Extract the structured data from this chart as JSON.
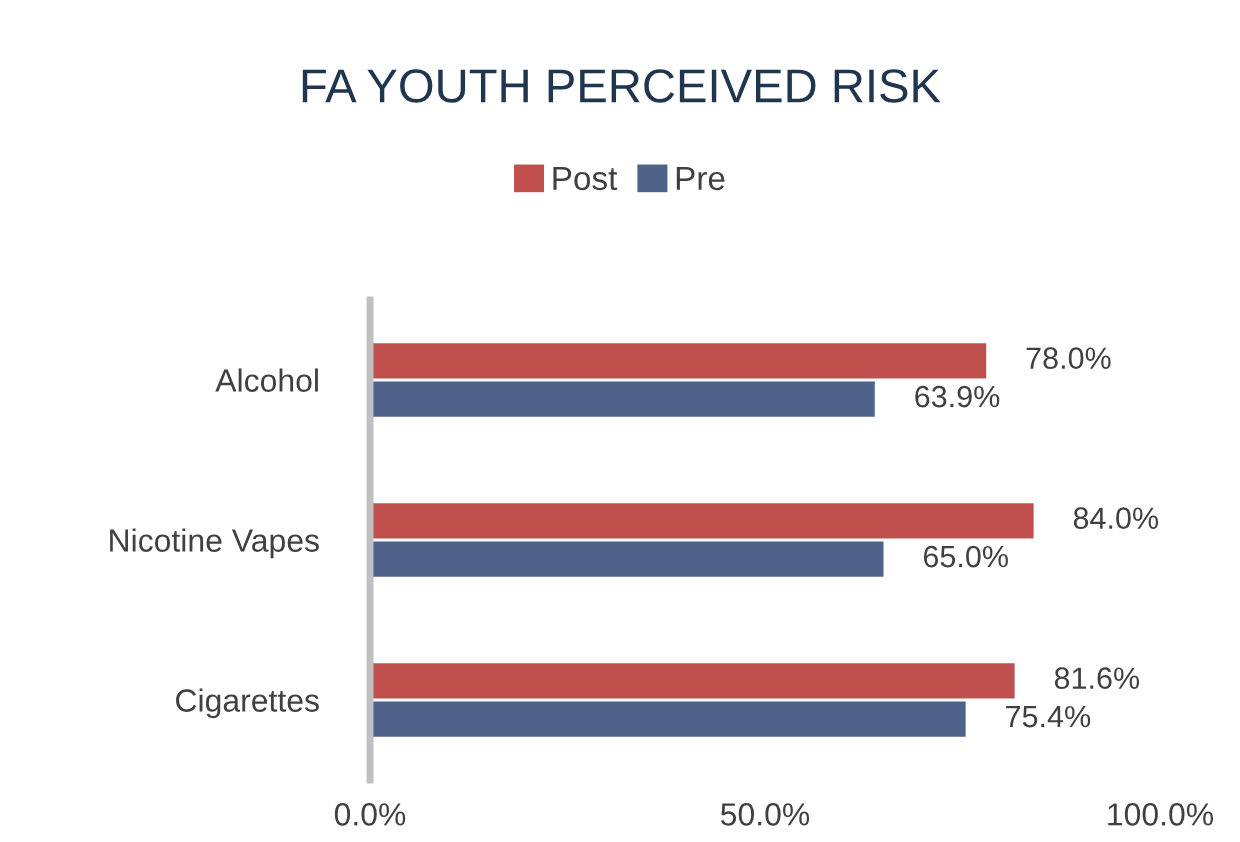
{
  "chart_data": {
    "type": "bar",
    "orientation": "horizontal",
    "title": "FA YOUTH PERCEIVED RISK",
    "categories": [
      "Alcohol",
      "Nicotine Vapes",
      "Cigarettes"
    ],
    "series": [
      {
        "name": "Post",
        "color": "#c0504d",
        "values": [
          78.0,
          84.0,
          81.6
        ],
        "value_labels": [
          "78.0%",
          "84.0%",
          "81.6%"
        ]
      },
      {
        "name": "Pre",
        "color": "#4f6289",
        "values": [
          63.9,
          65.0,
          75.4
        ],
        "value_labels": [
          "63.9%",
          "65.0%",
          "75.4%"
        ]
      }
    ],
    "xlim": [
      0,
      100
    ],
    "xticks": [
      {
        "value": 0,
        "label": "0.0%"
      },
      {
        "value": 50,
        "label": "50.0%"
      },
      {
        "value": 100,
        "label": "100.0%"
      }
    ],
    "grid": false,
    "legend": "top"
  }
}
